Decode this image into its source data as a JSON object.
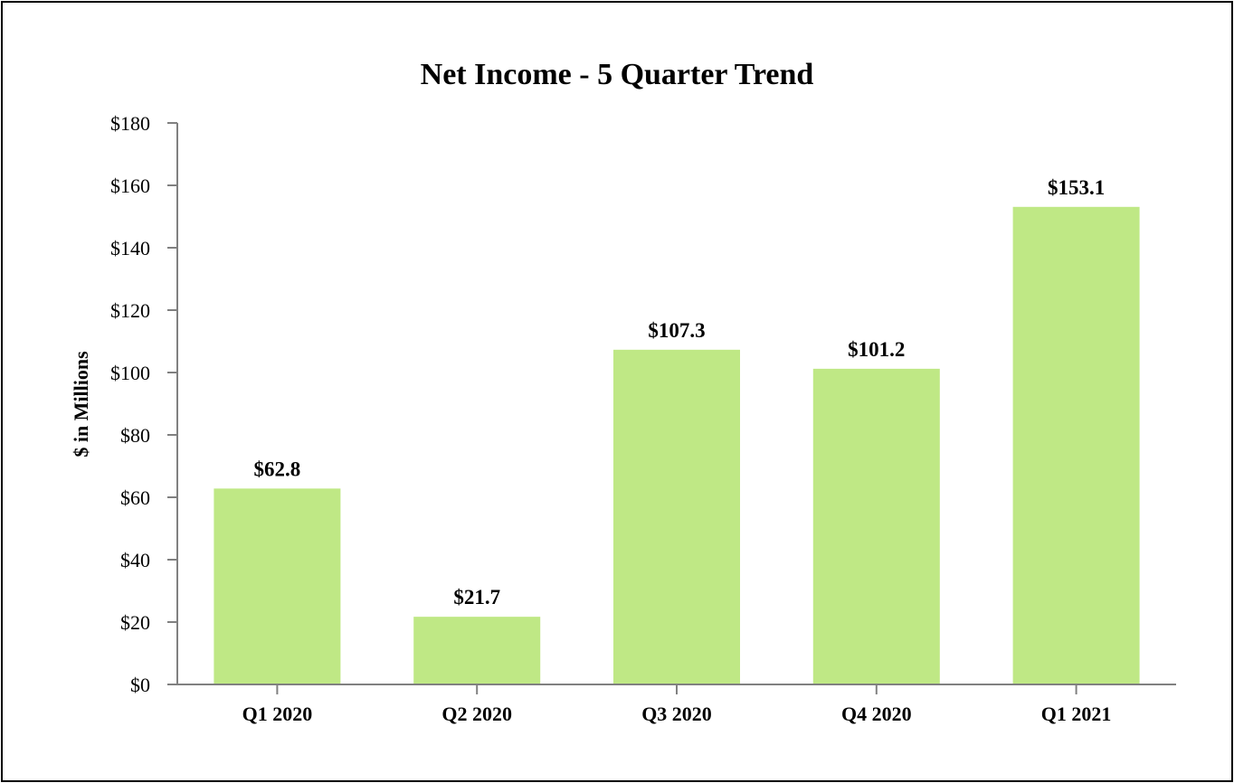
{
  "chart_data": {
    "type": "bar",
    "title": "Net Income - 5 Quarter Trend",
    "ylabel": "$ in Millions",
    "xlabel": "",
    "categories": [
      "Q1 2020",
      "Q2 2020",
      "Q3 2020",
      "Q4 2020",
      "Q1 2021"
    ],
    "values": [
      62.8,
      21.7,
      107.3,
      101.2,
      153.1
    ],
    "data_labels": [
      "$62.8",
      "$21.7",
      "$107.3",
      "$101.2",
      "$153.1"
    ],
    "ylim": [
      0,
      180
    ],
    "yticks": [
      0,
      20,
      40,
      60,
      80,
      100,
      120,
      140,
      160,
      180
    ],
    "ytick_labels": [
      "$0",
      "$20",
      "$40",
      "$60",
      "$80",
      "$100",
      "$120",
      "$140",
      "$160",
      "$180"
    ],
    "grid": false,
    "legend": "none",
    "colors": {
      "bar": "#bfe885",
      "axis": "#808080",
      "text": "#000000",
      "border": "#000000"
    }
  }
}
